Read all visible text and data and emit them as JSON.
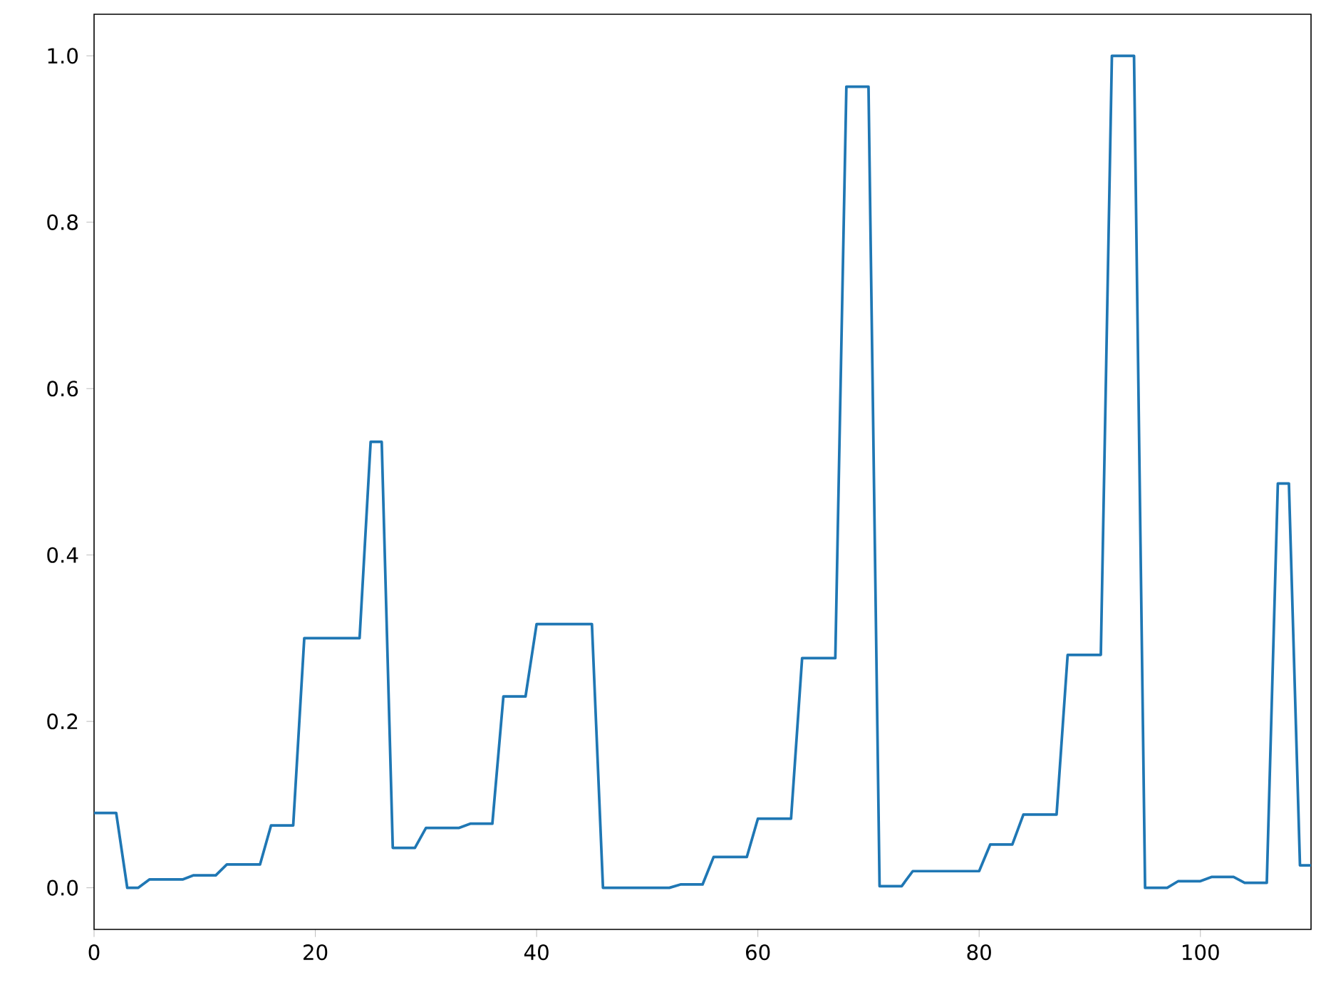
{
  "chart_data": {
    "type": "line",
    "x": [
      0,
      2,
      3,
      4,
      5,
      8,
      9,
      11,
      12,
      15,
      16,
      18,
      19,
      24,
      25,
      26,
      27,
      29,
      30,
      33,
      34,
      36,
      37,
      39,
      40,
      45,
      46,
      52,
      53,
      55,
      56,
      59,
      60,
      63,
      64,
      67,
      68,
      70,
      71,
      73,
      74,
      80,
      81,
      83,
      84,
      87,
      88,
      91,
      92,
      94,
      95,
      97,
      98,
      100,
      101,
      103,
      104,
      106,
      107,
      108,
      109,
      110
    ],
    "series": [
      {
        "color": "#1f77b4",
        "values": [
          0.09,
          0.09,
          0.0,
          0.0,
          0.01,
          0.01,
          0.015,
          0.015,
          0.028,
          0.028,
          0.075,
          0.075,
          0.3,
          0.3,
          0.536,
          0.536,
          0.048,
          0.048,
          0.072,
          0.072,
          0.077,
          0.077,
          0.23,
          0.23,
          0.317,
          0.317,
          0.0,
          0.0,
          0.004,
          0.004,
          0.037,
          0.037,
          0.083,
          0.083,
          0.276,
          0.276,
          0.963,
          0.963,
          0.002,
          0.002,
          0.02,
          0.02,
          0.052,
          0.052,
          0.088,
          0.088,
          0.28,
          0.28,
          1.0,
          1.0,
          0.0,
          0.0,
          0.008,
          0.008,
          0.013,
          0.013,
          0.006,
          0.006,
          0.486,
          0.486,
          0.027,
          0.027
        ]
      }
    ],
    "xlim": [
      0,
      110
    ],
    "ylim": [
      -0.05,
      1.05
    ],
    "xticks": [
      0,
      20,
      40,
      60,
      80,
      100
    ],
    "yticks": [
      {
        "value": 0,
        "label": "0.0"
      },
      0.2,
      0.4,
      0.6,
      0.8,
      {
        "value": 1,
        "label": "1.0"
      }
    ],
    "grid": false
  }
}
